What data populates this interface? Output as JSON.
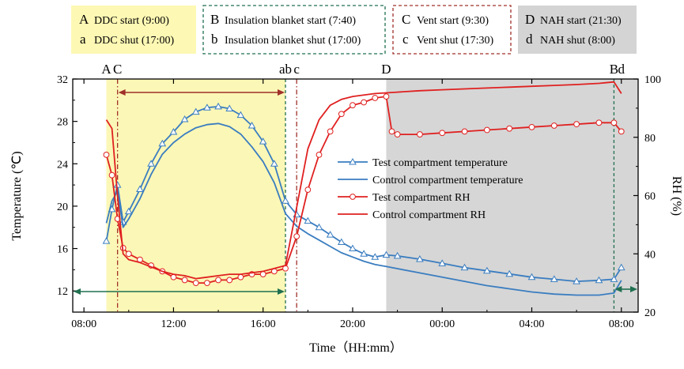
{
  "colors": {
    "blue": "#3a7dc0",
    "red": "#e02020",
    "ddc_box": "#fdf8b4",
    "ddc_region": "#fbf7b6",
    "nah_region": "#d6d6d6",
    "nah_box": "#d4d4d4",
    "green": "#207050",
    "darkred": "#a0302a"
  },
  "legend_boxes": [
    {
      "upper": "A",
      "upper_text": "DDC start (9:00)",
      "lower": "a",
      "lower_text": "DDC shut (17:00)"
    },
    {
      "upper": "B",
      "upper_text": "Insulation blanket start (7:40)",
      "lower": "b",
      "lower_text": "Insulation blanket shut (17:00)"
    },
    {
      "upper": "C",
      "upper_text": "Vent start (9:30)",
      "lower": "c",
      "lower_text": "Vent shut (17:30)"
    },
    {
      "upper": "D",
      "upper_text": "NAH start (21:30)",
      "lower": "d",
      "lower_text": "NAH shut (8:00)"
    }
  ],
  "event_labels": [
    {
      "text": "A",
      "h": 9.0
    },
    {
      "text": "C",
      "h": 9.5
    },
    {
      "text": "ab",
      "h": 17.0
    },
    {
      "text": "c",
      "h": 17.5
    },
    {
      "text": "D",
      "h": 21.5
    },
    {
      "text": "B",
      "h": 31.67
    },
    {
      "text": "d",
      "h": 32.0
    }
  ],
  "chart_data": {
    "type": "line",
    "xlabel": "Time（HH:mm）",
    "ylabel_left": "Temperature (℃)",
    "ylabel_right": "RH (%)",
    "xlim": [
      7.5,
      32.75
    ],
    "ylim_left": [
      10,
      32
    ],
    "ylim_right": [
      20,
      100
    ],
    "x_ticks": [
      {
        "h": 8,
        "label": "08:00"
      },
      {
        "h": 12,
        "label": "12:00"
      },
      {
        "h": 16,
        "label": "16:00"
      },
      {
        "h": 20,
        "label": "20:00"
      },
      {
        "h": 24,
        "label": "00:00"
      },
      {
        "h": 28,
        "label": "04:00"
      },
      {
        "h": 32,
        "label": "08:00"
      }
    ],
    "y_ticks_left": [
      12,
      16,
      20,
      24,
      28,
      32
    ],
    "y_ticks_right": [
      20,
      40,
      60,
      80,
      100
    ],
    "legend": {
      "placement": "center-right",
      "entries": [
        "Test compartment temperature",
        "Control compartment temperature",
        "Test compartment RH",
        "Control compartment RH"
      ]
    },
    "series": [
      {
        "name": "Test compartment temperature",
        "axis": "left",
        "marker": "triangle",
        "points": [
          [
            9.0,
            16.7
          ],
          [
            9.25,
            19.7
          ],
          [
            9.5,
            22.0
          ],
          [
            9.75,
            18.5
          ],
          [
            10.0,
            19.5
          ],
          [
            10.5,
            21.6
          ],
          [
            11.0,
            24.0
          ],
          [
            11.5,
            25.9
          ],
          [
            12.0,
            27.0
          ],
          [
            12.5,
            28.2
          ],
          [
            13.0,
            28.9
          ],
          [
            13.5,
            29.3
          ],
          [
            14.0,
            29.4
          ],
          [
            14.5,
            29.2
          ],
          [
            15.0,
            28.6
          ],
          [
            15.5,
            27.6
          ],
          [
            16.0,
            26.1
          ],
          [
            16.5,
            24.0
          ],
          [
            17.0,
            20.5
          ],
          [
            17.5,
            19.2
          ],
          [
            18.0,
            18.6
          ],
          [
            18.5,
            18.0
          ],
          [
            19.0,
            17.3
          ],
          [
            19.5,
            16.6
          ],
          [
            20.0,
            16.0
          ],
          [
            20.5,
            15.5
          ],
          [
            21.0,
            15.2
          ],
          [
            21.5,
            15.4
          ],
          [
            22.0,
            15.3
          ],
          [
            23.0,
            15.0
          ],
          [
            24.0,
            14.6
          ],
          [
            25.0,
            14.2
          ],
          [
            26.0,
            13.9
          ],
          [
            27.0,
            13.6
          ],
          [
            28.0,
            13.3
          ],
          [
            29.0,
            13.1
          ],
          [
            30.0,
            12.9
          ],
          [
            31.0,
            13.0
          ],
          [
            31.67,
            13.1
          ],
          [
            32.0,
            14.2
          ]
        ]
      },
      {
        "name": "Control compartment temperature",
        "axis": "left",
        "marker": "none",
        "points": [
          [
            9.0,
            18.4
          ],
          [
            9.25,
            20.5
          ],
          [
            9.5,
            21.4
          ],
          [
            9.75,
            18.0
          ],
          [
            10.0,
            18.8
          ],
          [
            10.5,
            20.7
          ],
          [
            11.0,
            23.0
          ],
          [
            11.5,
            24.9
          ],
          [
            12.0,
            26.0
          ],
          [
            12.5,
            26.8
          ],
          [
            13.0,
            27.4
          ],
          [
            13.5,
            27.7
          ],
          [
            14.0,
            27.8
          ],
          [
            14.5,
            27.5
          ],
          [
            15.0,
            26.8
          ],
          [
            15.5,
            25.6
          ],
          [
            16.0,
            24.2
          ],
          [
            16.5,
            22.2
          ],
          [
            17.0,
            19.3
          ],
          [
            17.5,
            18.1
          ],
          [
            18.0,
            17.4
          ],
          [
            18.5,
            16.8
          ],
          [
            19.0,
            16.2
          ],
          [
            19.5,
            15.6
          ],
          [
            20.0,
            15.2
          ],
          [
            20.5,
            14.8
          ],
          [
            21.0,
            14.5
          ],
          [
            21.5,
            14.3
          ],
          [
            22.0,
            14.1
          ],
          [
            23.0,
            13.7
          ],
          [
            24.0,
            13.3
          ],
          [
            25.0,
            12.9
          ],
          [
            26.0,
            12.5
          ],
          [
            27.0,
            12.2
          ],
          [
            28.0,
            11.9
          ],
          [
            29.0,
            11.7
          ],
          [
            30.0,
            11.6
          ],
          [
            31.0,
            11.6
          ],
          [
            31.67,
            11.8
          ],
          [
            32.0,
            13.0
          ]
        ]
      },
      {
        "name": "Test compartment RH",
        "axis": "right",
        "marker": "circle",
        "points": [
          [
            9.0,
            74
          ],
          [
            9.25,
            67
          ],
          [
            9.5,
            52
          ],
          [
            9.75,
            42
          ],
          [
            10.0,
            40
          ],
          [
            10.5,
            38
          ],
          [
            11.0,
            36
          ],
          [
            11.5,
            34
          ],
          [
            12.0,
            32
          ],
          [
            12.5,
            31
          ],
          [
            13.0,
            30
          ],
          [
            13.5,
            30
          ],
          [
            14.0,
            31
          ],
          [
            14.5,
            31
          ],
          [
            15.0,
            32
          ],
          [
            15.5,
            33
          ],
          [
            16.0,
            33
          ],
          [
            16.5,
            34
          ],
          [
            17.0,
            35
          ],
          [
            17.5,
            46
          ],
          [
            18.0,
            62
          ],
          [
            18.5,
            74
          ],
          [
            19.0,
            82
          ],
          [
            19.5,
            88
          ],
          [
            20.0,
            91
          ],
          [
            20.5,
            92
          ],
          [
            21.0,
            93.5
          ],
          [
            21.5,
            94
          ],
          [
            21.75,
            82
          ],
          [
            22.0,
            81
          ],
          [
            23.0,
            81
          ],
          [
            24.0,
            81.5
          ],
          [
            25.0,
            82
          ],
          [
            26.0,
            82.5
          ],
          [
            27.0,
            83
          ],
          [
            28.0,
            83.5
          ],
          [
            29.0,
            84
          ],
          [
            30.0,
            84.5
          ],
          [
            31.0,
            85
          ],
          [
            31.67,
            85
          ],
          [
            32.0,
            82
          ]
        ]
      },
      {
        "name": "Control compartment RH",
        "axis": "right",
        "marker": "none",
        "points": [
          [
            9.0,
            86
          ],
          [
            9.25,
            83
          ],
          [
            9.5,
            60
          ],
          [
            9.75,
            40
          ],
          [
            10.0,
            38
          ],
          [
            10.5,
            37
          ],
          [
            11.0,
            35.5
          ],
          [
            11.5,
            34
          ],
          [
            12.0,
            33
          ],
          [
            12.5,
            32.5
          ],
          [
            13.0,
            31.5
          ],
          [
            13.5,
            32
          ],
          [
            14.0,
            32.5
          ],
          [
            14.5,
            33
          ],
          [
            15.0,
            33
          ],
          [
            15.5,
            33.5
          ],
          [
            16.0,
            34
          ],
          [
            16.5,
            35
          ],
          [
            17.0,
            36
          ],
          [
            17.5,
            56
          ],
          [
            18.0,
            76
          ],
          [
            18.5,
            86
          ],
          [
            19.0,
            91
          ],
          [
            19.5,
            93
          ],
          [
            20.0,
            94
          ],
          [
            21.0,
            95
          ],
          [
            22.0,
            95.5
          ],
          [
            23.0,
            96
          ],
          [
            24.0,
            96.3
          ],
          [
            25.0,
            96.6
          ],
          [
            26.0,
            96.9
          ],
          [
            27.0,
            97.2
          ],
          [
            28.0,
            97.5
          ],
          [
            29.0,
            97.8
          ],
          [
            30.0,
            98.1
          ],
          [
            31.0,
            98.5
          ],
          [
            31.67,
            99
          ],
          [
            32.0,
            95
          ]
        ]
      }
    ]
  }
}
